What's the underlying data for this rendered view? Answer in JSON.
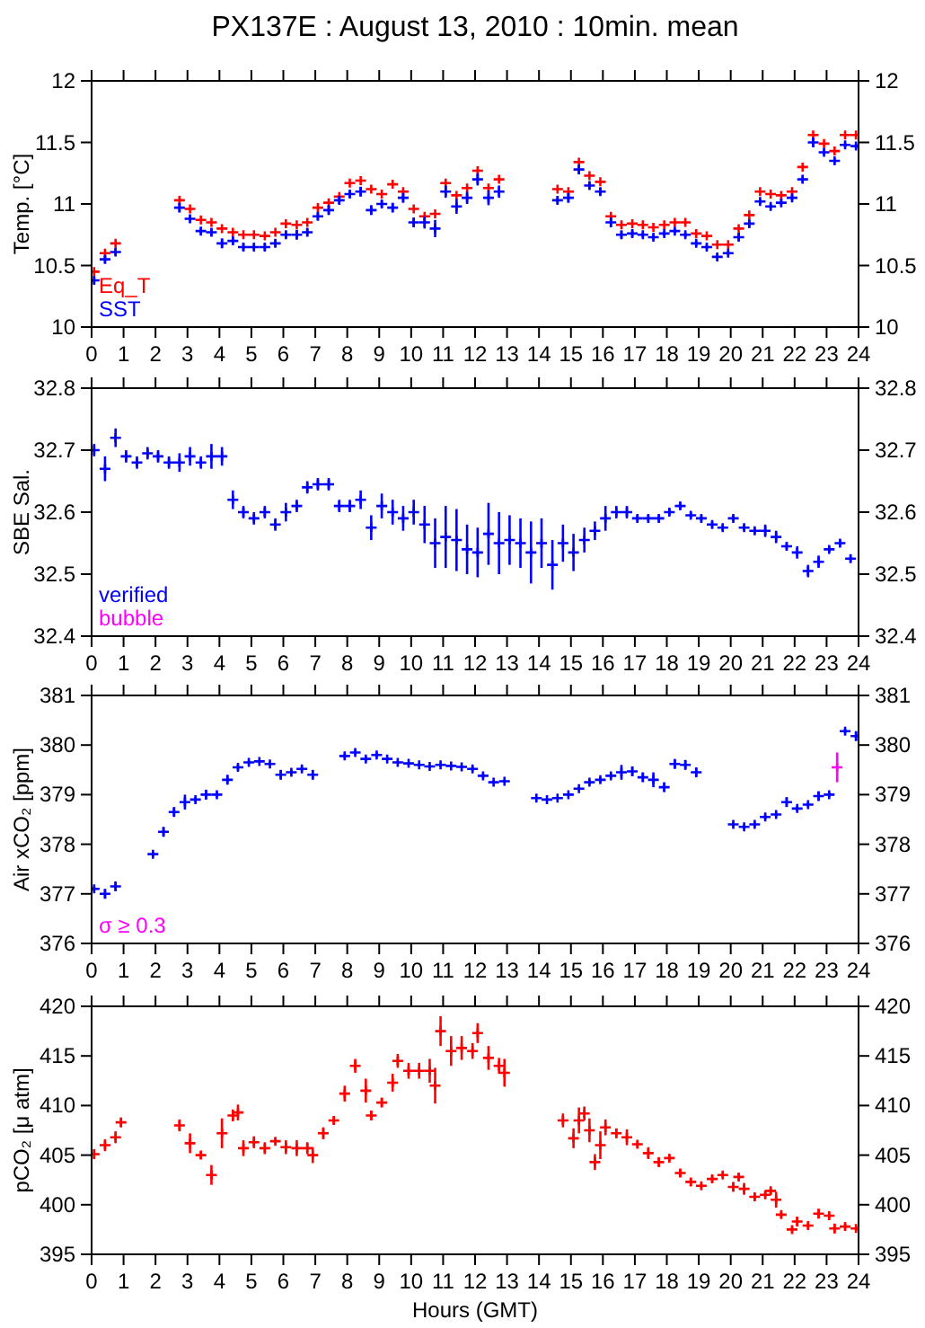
{
  "chart_data": [
    {
      "type": "scatter",
      "title": "PX137E : August 13, 2010 : 10min. mean",
      "ylabel": "Temp. [°C]",
      "marker": "cross",
      "xlim": [
        0,
        24
      ],
      "xticks": [
        0,
        1,
        2,
        3,
        4,
        5,
        6,
        7,
        8,
        9,
        10,
        11,
        12,
        13,
        14,
        15,
        16,
        17,
        18,
        19,
        20,
        21,
        22,
        23,
        24
      ],
      "ylim": [
        10,
        12
      ],
      "yticks": [
        10,
        10.5,
        11,
        11.5,
        12
      ],
      "y2lim": [
        10,
        12
      ],
      "y2ticks": [
        10,
        10.5,
        11,
        11.5,
        12
      ],
      "grid": false,
      "x": [
        0.08,
        0.42,
        0.75,
        2.75,
        3.08,
        3.42,
        3.75,
        4.08,
        4.42,
        4.75,
        5.08,
        5.42,
        5.75,
        6.08,
        6.42,
        6.75,
        7.08,
        7.42,
        7.75,
        8.08,
        8.42,
        8.75,
        9.08,
        9.42,
        9.75,
        10.08,
        10.42,
        10.75,
        11.08,
        11.42,
        11.75,
        12.08,
        12.42,
        12.75,
        14.58,
        14.92,
        15.25,
        15.58,
        15.92,
        16.25,
        16.58,
        16.92,
        17.25,
        17.58,
        17.92,
        18.25,
        18.58,
        18.92,
        19.25,
        19.58,
        19.92,
        20.25,
        20.58,
        20.92,
        21.25,
        21.58,
        21.92,
        22.25,
        22.58,
        22.92,
        23.25,
        23.58,
        23.92
      ],
      "series": [
        {
          "name": "Eq_T",
          "color": "#ff0000",
          "values": [
            10.45,
            10.6,
            10.68,
            11.03,
            10.96,
            10.87,
            10.85,
            10.8,
            10.77,
            10.75,
            10.75,
            10.74,
            10.77,
            10.84,
            10.83,
            10.85,
            10.97,
            11.01,
            11.06,
            11.17,
            11.19,
            11.12,
            11.08,
            11.16,
            11.1,
            10.96,
            10.9,
            10.92,
            11.17,
            11.07,
            11.13,
            11.27,
            11.13,
            11.2,
            11.12,
            11.1,
            11.34,
            11.23,
            11.18,
            10.9,
            10.83,
            10.84,
            10.83,
            10.81,
            10.83,
            10.85,
            10.85,
            10.76,
            10.74,
            10.67,
            10.67,
            10.8,
            10.91,
            11.1,
            11.08,
            11.07,
            11.1,
            11.3,
            11.56,
            11.49,
            11.43,
            11.56,
            11.56
          ]
        },
        {
          "name": "SST",
          "color": "#0000ff",
          "values": [
            10.38,
            10.55,
            10.61,
            10.97,
            10.88,
            10.78,
            10.77,
            10.68,
            10.7,
            10.65,
            10.65,
            10.65,
            10.68,
            10.75,
            10.75,
            10.77,
            10.9,
            10.95,
            11.03,
            11.08,
            11.1,
            10.95,
            11.0,
            10.97,
            11.05,
            10.85,
            10.85,
            10.8,
            11.1,
            10.98,
            11.05,
            11.2,
            11.05,
            11.1,
            11.03,
            11.05,
            11.28,
            11.15,
            11.1,
            10.85,
            10.75,
            10.76,
            10.75,
            10.73,
            10.76,
            10.78,
            10.75,
            10.68,
            10.65,
            10.57,
            10.6,
            10.73,
            10.84,
            11.02,
            10.98,
            11.01,
            11.05,
            11.2,
            11.5,
            11.42,
            11.35,
            11.48,
            11.47
          ],
          "errors": [
            0.03,
            0.03,
            0.03,
            0.04,
            0.03,
            0.03,
            0.03,
            0.04,
            0.03,
            0.03,
            0.02,
            0.03,
            0.03,
            0.03,
            0.04,
            0.03,
            0.03,
            0.04,
            0.03,
            0.03,
            0.04,
            0.04,
            0.03,
            0.04,
            0.04,
            0.04,
            0.05,
            0.07,
            0.05,
            0.06,
            0.05,
            0.05,
            0.06,
            0.05,
            0.03,
            0.04,
            0.04,
            0.03,
            0.03,
            0.04,
            0.03,
            0.03,
            0.02,
            0.02,
            0.02,
            0.02,
            0.02,
            0.02,
            0.02,
            0.03,
            0.02,
            0.03,
            0.03,
            0.02,
            0.02,
            0.02,
            0.02,
            0.03,
            0.04,
            0.02,
            0.02,
            0.02,
            0.02
          ]
        }
      ]
    },
    {
      "type": "scatter",
      "ylabel": "SBE Sal.",
      "marker": "cross",
      "xlim": [
        0,
        24
      ],
      "xticks": [
        0,
        1,
        2,
        3,
        4,
        5,
        6,
        7,
        8,
        9,
        10,
        11,
        12,
        13,
        14,
        15,
        16,
        17,
        18,
        19,
        20,
        21,
        22,
        23,
        24
      ],
      "ylim": [
        32.4,
        32.8
      ],
      "yticks": [
        32.4,
        32.5,
        32.6,
        32.7,
        32.8
      ],
      "y2lim": [
        32.4,
        32.8
      ],
      "y2ticks": [
        32.4,
        32.5,
        32.6,
        32.7,
        32.8
      ],
      "grid": false,
      "x": [
        0.08,
        0.42,
        0.75,
        1.08,
        1.42,
        1.75,
        2.08,
        2.42,
        2.75,
        3.08,
        3.42,
        3.75,
        4.08,
        4.42,
        4.75,
        5.08,
        5.42,
        5.75,
        6.08,
        6.42,
        6.75,
        7.08,
        7.42,
        7.75,
        8.08,
        8.42,
        8.75,
        9.08,
        9.42,
        9.75,
        10.08,
        10.42,
        10.75,
        11.08,
        11.42,
        11.75,
        12.08,
        12.42,
        12.75,
        13.08,
        13.42,
        13.75,
        14.08,
        14.42,
        14.75,
        15.08,
        15.42,
        15.75,
        16.08,
        16.42,
        16.75,
        17.08,
        17.42,
        17.75,
        18.08,
        18.42,
        18.75,
        19.08,
        19.42,
        19.75,
        20.08,
        20.42,
        20.75,
        21.08,
        21.42,
        21.75,
        22.08,
        22.42,
        22.75,
        23.08,
        23.42,
        23.75
      ],
      "series": [
        {
          "name": "verified",
          "color": "#0000ff",
          "values": [
            32.7,
            32.67,
            32.72,
            32.69,
            32.68,
            32.695,
            32.69,
            32.68,
            32.68,
            32.69,
            32.68,
            32.69,
            32.69,
            32.62,
            32.6,
            32.59,
            32.6,
            32.58,
            32.6,
            32.61,
            32.64,
            32.645,
            32.645,
            32.61,
            32.61,
            32.62,
            32.575,
            32.61,
            32.6,
            32.59,
            32.6,
            32.58,
            32.55,
            32.56,
            32.555,
            32.54,
            32.535,
            32.565,
            32.55,
            32.555,
            32.55,
            32.535,
            32.55,
            32.515,
            32.55,
            32.535,
            32.555,
            32.57,
            32.59,
            32.6,
            32.6,
            32.59,
            32.59,
            32.59,
            32.6,
            32.61,
            32.595,
            32.59,
            32.58,
            32.575,
            32.59,
            32.575,
            32.57,
            32.57,
            32.56,
            32.545,
            32.535,
            32.505,
            32.52,
            32.54,
            32.55,
            32.525
          ],
          "errors": [
            0.01,
            0.02,
            0.015,
            0.01,
            0.01,
            0.01,
            0.01,
            0.01,
            0.015,
            0.015,
            0.01,
            0.02,
            0.015,
            0.015,
            0.01,
            0.01,
            0.01,
            0.01,
            0.015,
            0.01,
            0.01,
            0.01,
            0.01,
            0.01,
            0.01,
            0.015,
            0.02,
            0.02,
            0.02,
            0.02,
            0.02,
            0.03,
            0.04,
            0.05,
            0.05,
            0.04,
            0.04,
            0.05,
            0.05,
            0.04,
            0.04,
            0.05,
            0.04,
            0.04,
            0.03,
            0.03,
            0.02,
            0.015,
            0.02,
            0.01,
            0.01,
            0.005,
            0.005,
            0.005,
            0.005,
            0.005,
            0.005,
            0.005,
            0.005,
            0.005,
            0.005,
            0.005,
            0.005,
            0.01,
            0.01,
            0.005,
            0.01,
            0.01,
            0.01,
            0.005,
            0.005,
            0.005
          ]
        },
        {
          "name": "bubble",
          "color": "#ff00ff",
          "values": [
            null,
            null,
            null,
            null,
            null,
            null,
            null,
            null,
            null,
            null,
            null,
            null,
            null,
            null,
            null,
            null,
            null,
            null,
            null,
            null,
            null,
            null,
            null,
            null,
            null,
            null,
            null,
            null,
            null,
            null,
            null,
            null,
            null,
            null,
            null,
            null,
            null,
            null,
            null,
            null,
            null,
            null,
            null,
            null,
            null,
            null,
            null,
            null,
            null,
            null,
            null,
            null,
            null,
            null,
            null,
            null,
            null,
            null,
            null,
            null,
            null,
            null,
            null,
            null,
            null,
            null,
            null,
            null,
            null,
            null,
            null,
            null
          ]
        }
      ]
    },
    {
      "type": "scatter",
      "ylabel": "Air xCO₂ [ppm]",
      "marker": "cross",
      "xlim": [
        0,
        24
      ],
      "xticks": [
        0,
        1,
        2,
        3,
        4,
        5,
        6,
        7,
        8,
        9,
        10,
        11,
        12,
        13,
        14,
        15,
        16,
        17,
        18,
        19,
        20,
        21,
        22,
        23,
        24
      ],
      "ylim": [
        376,
        381
      ],
      "yticks": [
        376,
        377,
        378,
        379,
        380,
        381
      ],
      "y2lim": [
        376,
        381
      ],
      "y2ticks": [
        376,
        377,
        378,
        379,
        380,
        381
      ],
      "grid": false,
      "series": [
        {
          "color": "#0000ff",
          "x": [
            0.08,
            0.42,
            0.75,
            1.92,
            2.25,
            2.58,
            2.92,
            3.25,
            3.58,
            3.92,
            4.25,
            4.58,
            4.92,
            5.25,
            5.58,
            5.92,
            6.25,
            6.58,
            6.92,
            7.92,
            8.25,
            8.58,
            8.92,
            9.25,
            9.58,
            9.92,
            10.25,
            10.58,
            10.92,
            11.25,
            11.58,
            11.92,
            12.25,
            12.58,
            12.92,
            13.92,
            14.25,
            14.58,
            14.92,
            15.25,
            15.58,
            15.92,
            16.25,
            16.58,
            16.92,
            17.25,
            17.58,
            17.92,
            18.25,
            18.58,
            18.92,
            20.08,
            20.42,
            20.75,
            21.08,
            21.42,
            21.75,
            22.08,
            22.42,
            22.75,
            23.08,
            23.58,
            23.92
          ],
          "values": [
            377.1,
            377.0,
            377.15,
            377.8,
            378.25,
            378.65,
            378.85,
            378.9,
            379.0,
            379.0,
            379.3,
            379.55,
            379.65,
            379.67,
            379.62,
            379.4,
            379.45,
            379.52,
            379.4,
            379.78,
            379.85,
            379.72,
            379.8,
            379.72,
            379.65,
            379.63,
            379.6,
            379.57,
            379.6,
            379.58,
            379.56,
            379.52,
            379.38,
            379.25,
            379.27,
            378.93,
            378.9,
            378.93,
            379.0,
            379.12,
            379.25,
            379.3,
            379.38,
            379.45,
            379.47,
            379.35,
            379.3,
            379.15,
            379.62,
            379.6,
            379.45,
            378.4,
            378.35,
            378.4,
            378.55,
            378.6,
            378.85,
            378.72,
            378.8,
            378.97,
            379.0,
            380.28,
            380.18
          ],
          "errors": [
            0.05,
            0.1,
            0.1,
            0.05,
            0.1,
            0.1,
            0.15,
            0.05,
            0.1,
            0.05,
            0.1,
            0.05,
            0.05,
            0.03,
            0.03,
            0.1,
            0.05,
            0.05,
            0.1,
            0.05,
            0.05,
            0.05,
            0.05,
            0.03,
            0.03,
            0.03,
            0.03,
            0.03,
            0.03,
            0.03,
            0.03,
            0.05,
            0.05,
            0.03,
            0.03,
            0.02,
            0.02,
            0.02,
            0.03,
            0.03,
            0.05,
            0.05,
            0.05,
            0.15,
            0.1,
            0.1,
            0.15,
            0.1,
            0.1,
            0.1,
            0.1,
            0.05,
            0.05,
            0.05,
            0.05,
            0.05,
            0.1,
            0.05,
            0.05,
            0.1,
            0.05,
            0.05,
            0.1
          ]
        },
        {
          "name": "σ ≥ 0.3",
          "color": "#ff00ff",
          "x": [
            23.33
          ],
          "values": [
            379.55
          ],
          "errors": [
            0.3
          ]
        }
      ]
    },
    {
      "type": "scatter",
      "ylabel": "pCO₂ [μ atm]",
      "xlabel": "Hours (GMT)",
      "marker": "cross",
      "xlim": [
        0,
        24
      ],
      "xticks": [
        0,
        1,
        2,
        3,
        4,
        5,
        6,
        7,
        8,
        9,
        10,
        11,
        12,
        13,
        14,
        15,
        16,
        17,
        18,
        19,
        20,
        21,
        22,
        23,
        24
      ],
      "ylim": [
        395,
        420
      ],
      "yticks": [
        395,
        400,
        405,
        410,
        415,
        420
      ],
      "y2lim": [
        395,
        420
      ],
      "y2ticks": [
        395,
        400,
        405,
        410,
        415,
        420
      ],
      "grid": false,
      "series": [
        {
          "color": "#ff0000",
          "x": [
            0.08,
            0.42,
            0.75,
            0.92,
            2.75,
            3.08,
            3.42,
            3.75,
            4.08,
            4.42,
            4.58,
            4.75,
            5.08,
            5.42,
            5.75,
            6.08,
            6.42,
            6.75,
            6.92,
            7.25,
            7.58,
            7.92,
            8.25,
            8.58,
            8.75,
            9.08,
            9.42,
            9.58,
            9.92,
            10.25,
            10.58,
            10.75,
            10.92,
            11.25,
            11.58,
            11.92,
            12.08,
            12.42,
            12.75,
            12.92,
            14.75,
            15.08,
            15.25,
            15.42,
            15.58,
            15.75,
            15.92,
            16.08,
            16.42,
            16.75,
            17.08,
            17.42,
            17.75,
            18.08,
            18.42,
            18.75,
            19.08,
            19.42,
            19.75,
            20.08,
            20.25,
            20.42,
            20.75,
            21.08,
            21.25,
            21.42,
            21.58,
            21.92,
            22.08,
            22.42,
            22.75,
            23.08,
            23.25,
            23.58,
            23.92
          ],
          "values": [
            405.1,
            406.0,
            406.8,
            408.3,
            408.0,
            406.2,
            405.0,
            403.0,
            407.2,
            409.0,
            409.3,
            405.7,
            406.3,
            405.7,
            406.4,
            405.8,
            405.7,
            405.7,
            405.0,
            407.2,
            408.5,
            411.2,
            414.0,
            411.5,
            409.0,
            410.3,
            412.3,
            414.5,
            413.5,
            413.5,
            413.5,
            412.0,
            417.5,
            415.5,
            415.8,
            415.5,
            417.3,
            414.8,
            414.0,
            413.3,
            408.5,
            406.7,
            408.5,
            409.2,
            407.5,
            404.3,
            406.0,
            407.8,
            407.2,
            406.8,
            406.1,
            405.2,
            404.3,
            404.7,
            403.2,
            402.3,
            401.9,
            402.6,
            403.0,
            401.8,
            402.8,
            401.6,
            400.8,
            401.0,
            401.4,
            400.5,
            399.0,
            397.5,
            398.3,
            397.9,
            399.1,
            398.9,
            397.6,
            397.8,
            397.6
          ],
          "errors": [
            0.5,
            0.6,
            0.6,
            0.5,
            0.6,
            1.0,
            0.4,
            1.0,
            1.5,
            0.6,
            0.8,
            0.8,
            0.6,
            0.6,
            0.3,
            0.7,
            0.8,
            0.6,
            0.8,
            0.6,
            0.4,
            0.8,
            0.7,
            1.2,
            0.5,
            0.5,
            0.9,
            0.7,
            0.8,
            0.8,
            1.2,
            1.8,
            1.5,
            1.5,
            1.2,
            0.8,
            1.0,
            1.2,
            0.8,
            1.4,
            0.7,
            1.0,
            1.3,
            0.7,
            1.2,
            0.8,
            1.4,
            0.8,
            0.5,
            0.8,
            0.3,
            0.6,
            0.5,
            0.3,
            0.4,
            0.4,
            0.3,
            0.4,
            0.3,
            0.5,
            0.4,
            0.6,
            0.4,
            0.3,
            0.3,
            0.8,
            0.3,
            0.3,
            0.5,
            0.3,
            0.5,
            0.3,
            0.5,
            0.3,
            0.2
          ]
        }
      ]
    }
  ]
}
